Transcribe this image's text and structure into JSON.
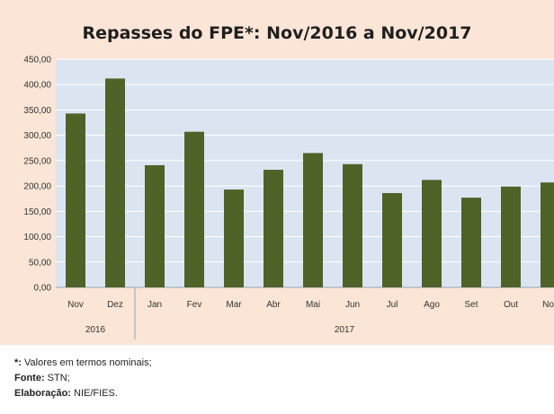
{
  "chart_data": {
    "type": "bar",
    "title": "Repasses do FPE*: Nov/2016 a Nov/2017",
    "categories": [
      "Nov",
      "Dez",
      "Jan",
      "Fev",
      "Mar",
      "Abr",
      "Mai",
      "Jun",
      "Jul",
      "Ago",
      "Set",
      "Out",
      "Nov"
    ],
    "category_groups": [
      {
        "label": "2016",
        "count": 2
      },
      {
        "label": "2017",
        "count": 11
      }
    ],
    "values": [
      343,
      412,
      241,
      307,
      193,
      232,
      265,
      243,
      186,
      212,
      177,
      199,
      207
    ],
    "yticks": [
      "0,00",
      "50,00",
      "100,00",
      "150,00",
      "200,00",
      "250,00",
      "300,00",
      "350,00",
      "400,00",
      "450,00"
    ],
    "ylim": [
      0,
      450
    ],
    "grid": true,
    "legend": "none",
    "colors": {
      "bar": "#4f6228",
      "plot_bg": "#dbe5f1",
      "outer_bg": "#fbe5d6"
    }
  },
  "notes": [
    {
      "key": "*:",
      "text": " Valores em termos nominais;"
    },
    {
      "key": "Fonte:",
      "text": " STN;"
    },
    {
      "key": "Elaboração:",
      "text": " NIE/FIES."
    }
  ]
}
